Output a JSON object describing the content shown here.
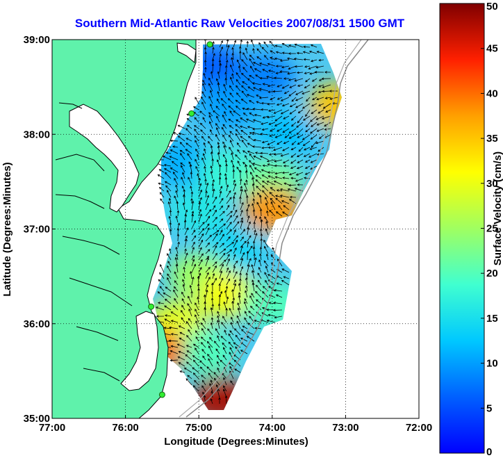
{
  "chart_data": {
    "type": "heatmap",
    "title": "Southern Mid-Atlantic Raw Velocities 2007/08/31 1500 GMT",
    "xlabel": "Longitude (Degrees:Minutes)",
    "ylabel": "Latitude (Degrees:Minutes)",
    "colorbar_label": "Surface Velocity (cm/s)",
    "xlim": [
      -77,
      -72
    ],
    "ylim": [
      35,
      39
    ],
    "x_ticks": [
      {
        "value": -77,
        "label": "77:00"
      },
      {
        "value": -76,
        "label": "76:00"
      },
      {
        "value": -75,
        "label": "75:00"
      },
      {
        "value": -74,
        "label": "74:00"
      },
      {
        "value": -73,
        "label": "73:00"
      },
      {
        "value": -72,
        "label": "72:00"
      }
    ],
    "y_ticks": [
      {
        "value": 35,
        "label": "35:00"
      },
      {
        "value": 36,
        "label": "36:00"
      },
      {
        "value": 37,
        "label": "37:00"
      },
      {
        "value": 38,
        "label": "38:00"
      },
      {
        "value": 39,
        "label": "39:00"
      }
    ],
    "colorbar": {
      "range": [
        0,
        50
      ],
      "ticks": [
        "0",
        "5",
        "10",
        "15",
        "20",
        "25",
        "30",
        "35",
        "40",
        "45",
        "50"
      ]
    },
    "grid": true,
    "land_color": "#5ff2ab",
    "colormap": "jet",
    "velocity_regions": [
      {
        "lon": -74.8,
        "lat": 38.7,
        "value": 6
      },
      {
        "lon": -74.1,
        "lat": 38.6,
        "value": 8
      },
      {
        "lon": -74.6,
        "lat": 38.3,
        "value": 10
      },
      {
        "lon": -73.8,
        "lat": 38.0,
        "value": 12
      },
      {
        "lon": -75.2,
        "lat": 37.7,
        "value": 11
      },
      {
        "lon": -74.6,
        "lat": 37.6,
        "value": 18
      },
      {
        "lon": -74.0,
        "lat": 37.5,
        "value": 22
      },
      {
        "lon": -74.0,
        "lat": 37.2,
        "value": 38
      },
      {
        "lon": -75.0,
        "lat": 37.2,
        "value": 16
      },
      {
        "lon": -74.5,
        "lat": 36.8,
        "value": 14
      },
      {
        "lon": -75.0,
        "lat": 36.5,
        "value": 25
      },
      {
        "lon": -74.6,
        "lat": 36.3,
        "value": 31
      },
      {
        "lon": -75.3,
        "lat": 36.0,
        "value": 30
      },
      {
        "lon": -74.0,
        "lat": 36.2,
        "value": 20
      },
      {
        "lon": -74.9,
        "lat": 35.7,
        "value": 20
      },
      {
        "lon": -74.7,
        "lat": 35.2,
        "value": 48
      },
      {
        "lon": -75.6,
        "lat": 35.7,
        "value": 40
      },
      {
        "lon": -73.1,
        "lat": 38.3,
        "value": 35
      }
    ],
    "stations": [
      {
        "lon": -74.85,
        "lat": 38.95
      },
      {
        "lon": -75.1,
        "lat": 38.22
      },
      {
        "lon": -75.65,
        "lat": 36.18
      },
      {
        "lon": -75.5,
        "lat": 35.25
      }
    ]
  }
}
